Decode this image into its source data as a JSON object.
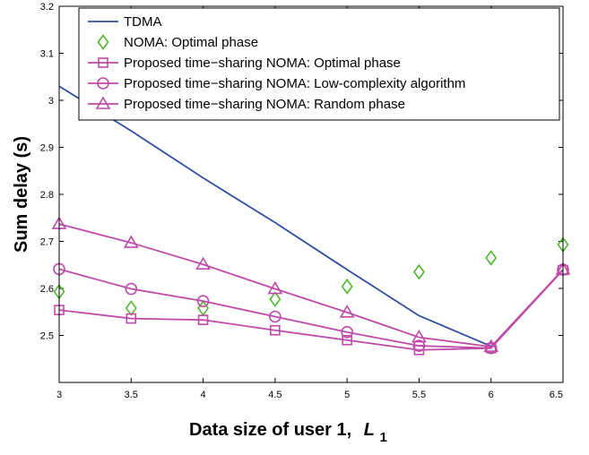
{
  "chart_data": {
    "type": "line",
    "title": "",
    "xlabel": "Data size of user 1,",
    "xlabel_symbol": "L",
    "xlabel_subscript": "1",
    "ylabel": "Sum delay (s)",
    "xlim": [
      3,
      6.5
    ],
    "ylim": [
      2.4,
      3.2
    ],
    "x_ticks": [
      "3",
      "3.5",
      "4",
      "4.5",
      "5",
      "5.5",
      "6",
      "6.5"
    ],
    "y_ticks": [
      "2.5",
      "2.6",
      "2.7",
      "2.8",
      "2.9",
      "3",
      "3.1",
      "3.2"
    ],
    "grid": false,
    "legend_position": "top-left",
    "colors": {
      "tdma": "#2e4fa0",
      "noma": "#4db82a",
      "proposed": "#bf4aa8"
    },
    "series": [
      {
        "name": "TDMA",
        "style": "line",
        "marker": "none",
        "color": "#2e4fa0",
        "x": [
          3,
          3.5,
          4,
          4.5,
          5,
          5.5,
          6
        ],
        "y": [
          3.03,
          2.935,
          2.835,
          2.74,
          2.64,
          2.542,
          2.477
        ]
      },
      {
        "name": "NOMA: Optimal phase",
        "style": "markers",
        "marker": "diamond",
        "color": "#4db82a",
        "x": [
          3,
          3.5,
          4,
          4.5,
          5,
          5.5,
          6,
          6.5
        ],
        "y": [
          2.593,
          2.558,
          2.558,
          2.577,
          2.604,
          2.635,
          2.665,
          2.693
        ]
      },
      {
        "name": "Proposed time−sharing NOMA: Optimal phase",
        "style": "line-markers",
        "marker": "square",
        "color": "#bf4aa8",
        "x": [
          3,
          3.5,
          4,
          4.5,
          5,
          5.5,
          6,
          6.5
        ],
        "y": [
          2.554,
          2.536,
          2.533,
          2.511,
          2.49,
          2.469,
          2.473,
          2.639
        ]
      },
      {
        "name": "Proposed time−sharing NOMA: Low-complexity algorithm",
        "style": "line-markers",
        "marker": "circle",
        "color": "#bf4aa8",
        "x": [
          3,
          3.5,
          4,
          4.5,
          5,
          5.5,
          6,
          6.5
        ],
        "y": [
          2.641,
          2.599,
          2.573,
          2.54,
          2.507,
          2.478,
          2.473,
          2.64
        ]
      },
      {
        "name": "Proposed time−sharing NOMA: Random phase",
        "style": "line-markers",
        "marker": "triangle",
        "color": "#bf4aa8",
        "x": [
          3,
          3.5,
          4,
          4.5,
          5,
          5.5,
          6,
          6.5
        ],
        "y": [
          2.737,
          2.697,
          2.651,
          2.599,
          2.549,
          2.496,
          2.476,
          2.64
        ]
      }
    ]
  }
}
